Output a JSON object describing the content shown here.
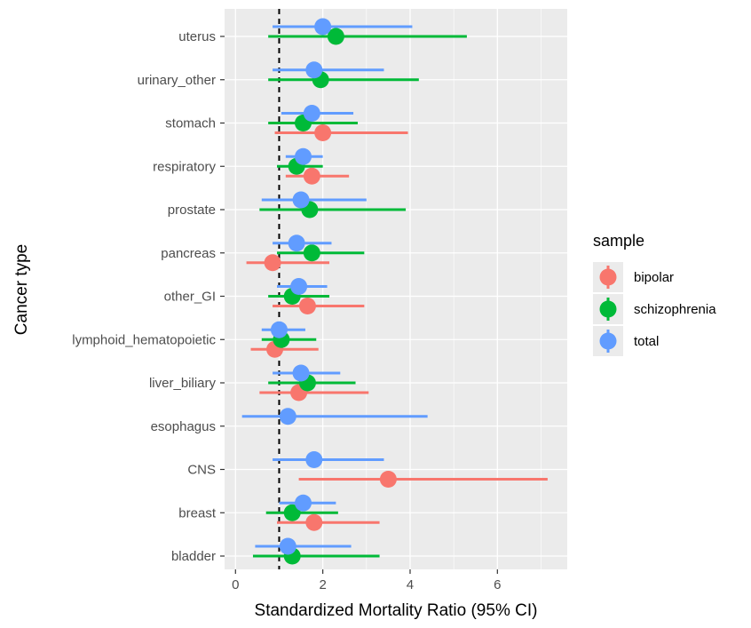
{
  "chart_data": {
    "type": "scatter",
    "title": "",
    "xlabel": "Standardized Mortality Ratio (95% CI)",
    "ylabel": "Cancer type",
    "xlim": [
      -0.25,
      7.6
    ],
    "xticks": [
      0,
      2,
      4,
      6
    ],
    "reference_line": {
      "x": 1,
      "style": "dashed"
    },
    "grid": true,
    "legend_position": "right",
    "legend_title": "sample",
    "categories": [
      "uterus",
      "urinary_other",
      "stomach",
      "respiratory",
      "prostate",
      "pancreas",
      "other_GI",
      "lymphoid_hematopoietic",
      "liver_biliary",
      "esophagus",
      "CNS",
      "breast",
      "bladder"
    ],
    "series": [
      {
        "name": "bipolar",
        "color": "#F8766D",
        "points": [
          {
            "category": "stomach",
            "smr": 2.0,
            "lower": 0.9,
            "upper": 3.95
          },
          {
            "category": "respiratory",
            "smr": 1.75,
            "lower": 1.15,
            "upper": 2.6
          },
          {
            "category": "pancreas",
            "smr": 0.85,
            "lower": 0.25,
            "upper": 2.15
          },
          {
            "category": "other_GI",
            "smr": 1.65,
            "lower": 0.85,
            "upper": 2.95
          },
          {
            "category": "lymphoid_hematopoietic",
            "smr": 0.9,
            "lower": 0.35,
            "upper": 1.9
          },
          {
            "category": "liver_biliary",
            "smr": 1.45,
            "lower": 0.55,
            "upper": 3.05
          },
          {
            "category": "CNS",
            "smr": 3.5,
            "lower": 1.45,
            "upper": 7.15
          },
          {
            "category": "breast",
            "smr": 1.8,
            "lower": 0.95,
            "upper": 3.3
          }
        ]
      },
      {
        "name": "schizophrenia",
        "color": "#00BA38",
        "points": [
          {
            "category": "uterus",
            "smr": 2.3,
            "lower": 0.75,
            "upper": 5.3
          },
          {
            "category": "urinary_other",
            "smr": 1.95,
            "lower": 0.75,
            "upper": 4.2
          },
          {
            "category": "stomach",
            "smr": 1.55,
            "lower": 0.75,
            "upper": 2.8
          },
          {
            "category": "respiratory",
            "smr": 1.4,
            "lower": 0.95,
            "upper": 2.0
          },
          {
            "category": "prostate",
            "smr": 1.7,
            "lower": 0.55,
            "upper": 3.9
          },
          {
            "category": "pancreas",
            "smr": 1.75,
            "lower": 0.95,
            "upper": 2.95
          },
          {
            "category": "other_GI",
            "smr": 1.3,
            "lower": 0.75,
            "upper": 2.15
          },
          {
            "category": "lymphoid_hematopoietic",
            "smr": 1.05,
            "lower": 0.6,
            "upper": 1.85
          },
          {
            "category": "liver_biliary",
            "smr": 1.65,
            "lower": 0.75,
            "upper": 2.75
          },
          {
            "category": "breast",
            "smr": 1.3,
            "lower": 0.7,
            "upper": 2.35
          },
          {
            "category": "bladder",
            "smr": 1.3,
            "lower": 0.4,
            "upper": 3.3
          }
        ]
      },
      {
        "name": "total",
        "color": "#619CFF",
        "points": [
          {
            "category": "uterus",
            "smr": 2.0,
            "lower": 0.85,
            "upper": 4.05
          },
          {
            "category": "urinary_other",
            "smr": 1.8,
            "lower": 0.85,
            "upper": 3.4
          },
          {
            "category": "stomach",
            "smr": 1.75,
            "lower": 1.05,
            "upper": 2.7
          },
          {
            "category": "respiratory",
            "smr": 1.55,
            "lower": 1.15,
            "upper": 2.0
          },
          {
            "category": "prostate",
            "smr": 1.5,
            "lower": 0.6,
            "upper": 3.0
          },
          {
            "category": "pancreas",
            "smr": 1.4,
            "lower": 0.85,
            "upper": 2.2
          },
          {
            "category": "other_GI",
            "smr": 1.45,
            "lower": 0.95,
            "upper": 2.1
          },
          {
            "category": "lymphoid_hematopoietic",
            "smr": 1.0,
            "lower": 0.6,
            "upper": 1.6
          },
          {
            "category": "liver_biliary",
            "smr": 1.5,
            "lower": 0.85,
            "upper": 2.4
          },
          {
            "category": "esophagus",
            "smr": 1.2,
            "lower": 0.15,
            "upper": 4.4
          },
          {
            "category": "CNS",
            "smr": 1.8,
            "lower": 0.85,
            "upper": 3.4
          },
          {
            "category": "breast",
            "smr": 1.55,
            "lower": 1.0,
            "upper": 2.3
          },
          {
            "category": "bladder",
            "smr": 1.2,
            "lower": 0.45,
            "upper": 2.65
          }
        ]
      }
    ]
  }
}
